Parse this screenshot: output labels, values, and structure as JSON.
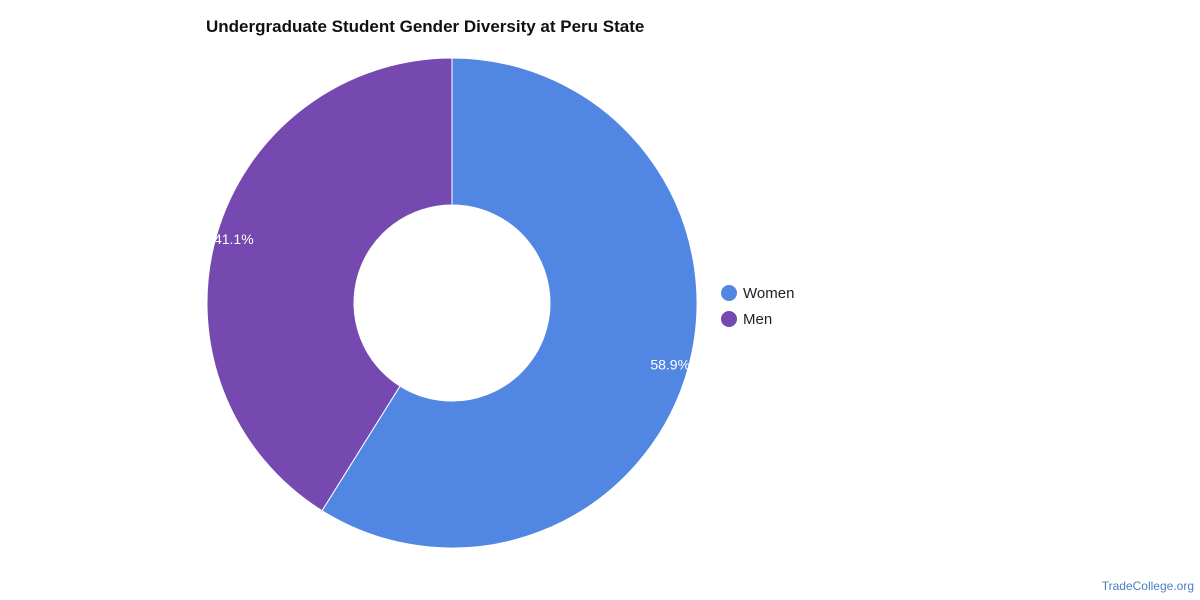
{
  "title": "Undergraduate Student Gender Diversity at Peru State",
  "source": "TradeCollege.org",
  "chart_data": {
    "type": "pie",
    "donut": true,
    "title": "Undergraduate Student Gender Diversity at Peru State",
    "legend_position": "right",
    "slices": [
      {
        "label": "Women",
        "value": 58.9,
        "display": "58.9%",
        "color": "#5286e3"
      },
      {
        "label": "Men",
        "value": 41.1,
        "display": "41.1%",
        "color": "#7549b0"
      }
    ]
  }
}
